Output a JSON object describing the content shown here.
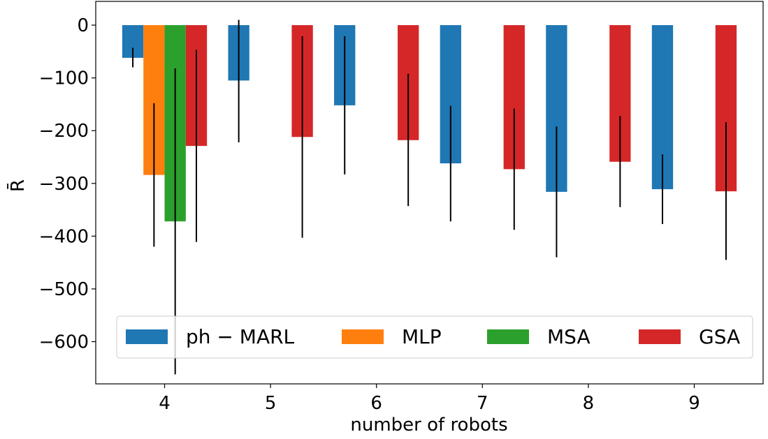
{
  "chart_data": {
    "type": "bar",
    "xlabel": "number of robots",
    "ylabel": "R̄",
    "ylim": [
      -680,
      45
    ],
    "xlim": [
      3.35,
      9.65
    ],
    "yticks": [
      0,
      -100,
      -200,
      -300,
      -400,
      -500,
      -600
    ],
    "ytick_labels": [
      "0",
      "−100",
      "−200",
      "−300",
      "−400",
      "−500",
      "−600"
    ],
    "xticks": [
      4,
      5,
      6,
      7,
      8,
      9
    ],
    "xtick_labels": [
      "4",
      "5",
      "6",
      "7",
      "8",
      "9"
    ],
    "legend_position": "lower center",
    "grid": false,
    "bar_width": 0.2,
    "series": [
      {
        "name": "ph − MARL",
        "color": "#1f77b4",
        "points": [
          {
            "x": 3.7,
            "value": -62,
            "err_low": -80,
            "err_high": -43
          },
          {
            "x": 4.7,
            "value": -105,
            "err_low": -222,
            "err_high": 10
          },
          {
            "x": 5.7,
            "value": -152,
            "err_low": -283,
            "err_high": -21
          },
          {
            "x": 6.7,
            "value": -262,
            "err_low": -372,
            "err_high": -153
          },
          {
            "x": 7.7,
            "value": -316,
            "err_low": -440,
            "err_high": -192
          },
          {
            "x": 8.7,
            "value": -311,
            "err_low": -377,
            "err_high": -245
          }
        ]
      },
      {
        "name": "MLP",
        "color": "#ff7f0e",
        "points": [
          {
            "x": 3.9,
            "value": -284,
            "err_low": -420,
            "err_high": -148
          }
        ]
      },
      {
        "name": "MSA",
        "color": "#2ca02c",
        "points": [
          {
            "x": 4.1,
            "value": -372,
            "err_low": -662,
            "err_high": -82
          }
        ]
      },
      {
        "name": "GSA",
        "color": "#d62728",
        "points": [
          {
            "x": 4.3,
            "value": -229,
            "err_low": -411,
            "err_high": -47
          },
          {
            "x": 5.3,
            "value": -212,
            "err_low": -403,
            "err_high": -21
          },
          {
            "x": 6.3,
            "value": -218,
            "err_low": -343,
            "err_high": -92
          },
          {
            "x": 7.3,
            "value": -273,
            "err_low": -388,
            "err_high": -158
          },
          {
            "x": 8.3,
            "value": -259,
            "err_low": -345,
            "err_high": -172
          },
          {
            "x": 9.3,
            "value": -315,
            "err_low": -445,
            "err_high": -184
          }
        ]
      }
    ]
  }
}
